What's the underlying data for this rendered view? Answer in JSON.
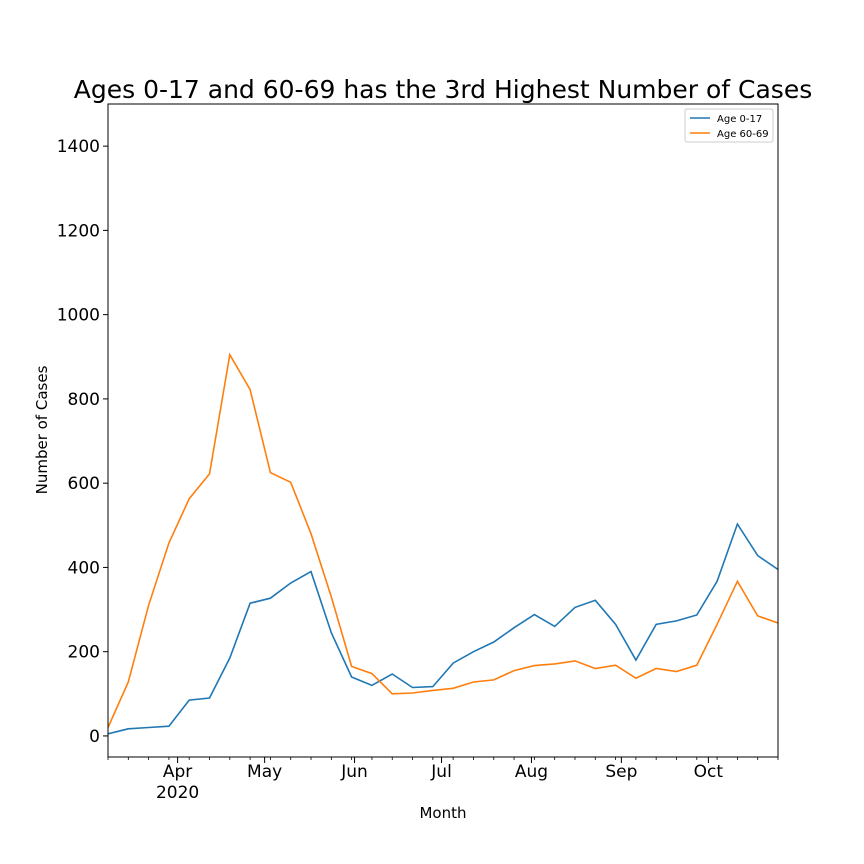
{
  "chart_data": {
    "type": "line",
    "title": "Ages 0-17 and 60-69 has the 3rd Highest Number of Cases",
    "xlabel": "Month",
    "ylabel": "Number of Cases",
    "ylim": [
      -50,
      1500
    ],
    "yticks": [
      0,
      200,
      400,
      600,
      800,
      1000,
      1200,
      1400
    ],
    "xlim": [
      "2020-03-08",
      "2020-10-25"
    ],
    "xticks": [
      {
        "date": "2020-04-01",
        "label": "Apr",
        "sublabel": "2020"
      },
      {
        "date": "2020-05-01",
        "label": "May"
      },
      {
        "date": "2020-06-01",
        "label": "Jun"
      },
      {
        "date": "2020-07-01",
        "label": "Jul"
      },
      {
        "date": "2020-08-01",
        "label": "Aug"
      },
      {
        "date": "2020-09-01",
        "label": "Sep"
      },
      {
        "date": "2020-10-01",
        "label": "Oct"
      }
    ],
    "x": [
      "2020-03-08",
      "2020-03-15",
      "2020-03-22",
      "2020-03-29",
      "2020-04-05",
      "2020-04-12",
      "2020-04-19",
      "2020-04-26",
      "2020-05-03",
      "2020-05-10",
      "2020-05-17",
      "2020-05-24",
      "2020-05-31",
      "2020-06-07",
      "2020-06-14",
      "2020-06-21",
      "2020-06-28",
      "2020-07-05",
      "2020-07-12",
      "2020-07-19",
      "2020-07-26",
      "2020-08-02",
      "2020-08-09",
      "2020-08-16",
      "2020-08-23",
      "2020-08-30",
      "2020-09-06",
      "2020-09-13",
      "2020-09-20",
      "2020-09-27",
      "2020-10-04",
      "2020-10-11",
      "2020-10-18",
      "2020-10-25"
    ],
    "series": [
      {
        "name": "Age 0-17",
        "color": "#1f77b4",
        "values": [
          5,
          17,
          20,
          23,
          85,
          90,
          185,
          315,
          327,
          363,
          390,
          245,
          140,
          120,
          147,
          115,
          117,
          173,
          200,
          223,
          257,
          288,
          260,
          305,
          322,
          265,
          180,
          265,
          273,
          287,
          367,
          503,
          428,
          395
        ]
      },
      {
        "name": "Age 60-69",
        "color": "#ff7f0e",
        "values": [
          20,
          128,
          310,
          458,
          563,
          622,
          905,
          822,
          625,
          602,
          480,
          330,
          165,
          148,
          100,
          102,
          108,
          113,
          128,
          133,
          155,
          167,
          171,
          178,
          160,
          168,
          137,
          160,
          153,
          168,
          265,
          367,
          285,
          268
        ]
      }
    ],
    "legend": "top-right",
    "grid": false
  }
}
